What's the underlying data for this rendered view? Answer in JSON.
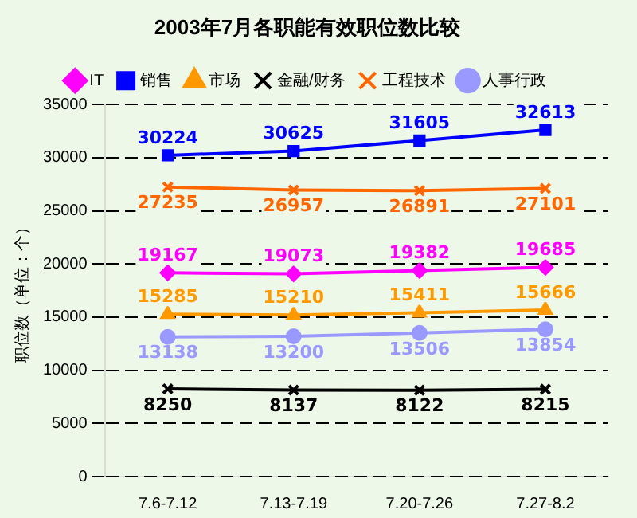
{
  "chart_data": {
    "type": "line",
    "title": "2003年7月各职能有效职位数比较",
    "ylabel": "职位数（单位：个）",
    "categories": [
      "7.6-7.12",
      "7.13-7.19",
      "7.20-7.26",
      "7.27-8.2"
    ],
    "series": [
      {
        "name": "IT",
        "color": "#ff00ff",
        "marker": "diamond",
        "values": [
          19167,
          19073,
          19382,
          19685
        ]
      },
      {
        "name": "销售",
        "color": "#0000ff",
        "marker": "square",
        "values": [
          30224,
          30625,
          31605,
          32613
        ]
      },
      {
        "name": "市场",
        "color": "#ff9900",
        "marker": "triangle",
        "values": [
          15285,
          15210,
          15411,
          15666
        ]
      },
      {
        "name": "金融/财务",
        "color": "#000000",
        "marker": "cross",
        "values": [
          8250,
          8137,
          8122,
          8215
        ]
      },
      {
        "name": "工程技术",
        "color": "#ff6600",
        "marker": "cross",
        "values": [
          27235,
          26957,
          26891,
          27101
        ]
      },
      {
        "name": "人事行政",
        "color": "#9999ff",
        "marker": "circle",
        "values": [
          13138,
          13200,
          13506,
          13854
        ]
      }
    ],
    "ylim": [
      0,
      35000
    ],
    "yticks": [
      0,
      5000,
      10000,
      15000,
      20000,
      25000,
      30000,
      35000
    ],
    "grid": "y",
    "legend": "top",
    "data_labels": true
  }
}
